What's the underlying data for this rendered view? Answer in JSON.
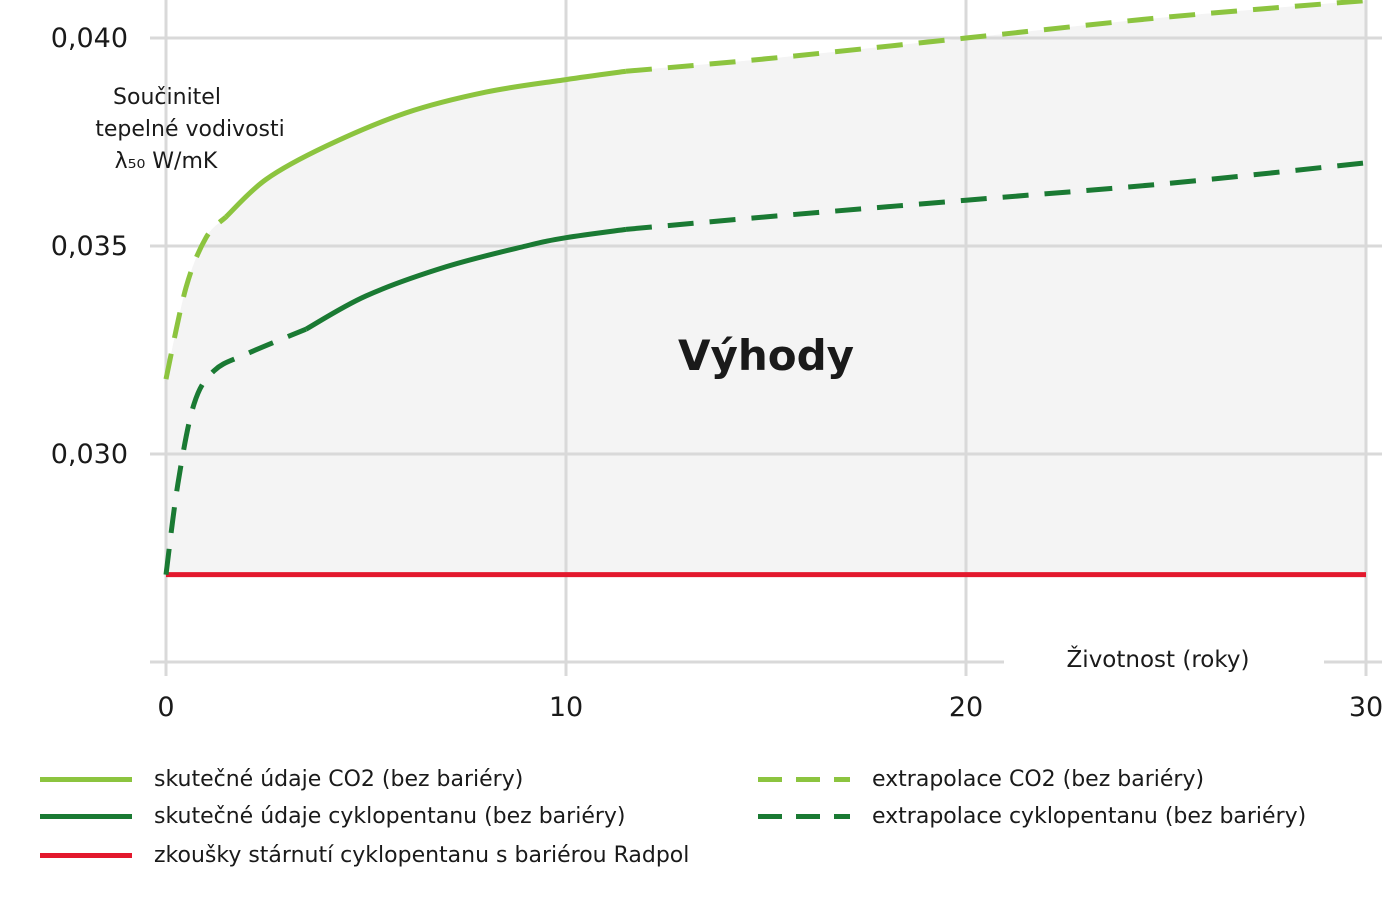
{
  "chart_data": {
    "type": "line",
    "xlabel": "Životnost (roky)",
    "ylabel_lines": [
      "Součinitel",
      "tepelné vodivosti",
      "λ₅₀ W/mK"
    ],
    "annotation": "Výhody",
    "xlim": [
      0,
      30
    ],
    "ylim": [
      0.0258,
      0.0408
    ],
    "x_ticks": [
      0,
      10,
      20,
      30
    ],
    "x_tick_labels": [
      "0",
      "10",
      "20",
      "30"
    ],
    "y_ticks": [
      0.03,
      0.035,
      0.04
    ],
    "y_tick_labels": [
      "0,030",
      "0,035",
      "0,040"
    ],
    "grid": true,
    "fill_between": {
      "upper": "co2",
      "lower": "radpol",
      "color": "#f4f4f4"
    },
    "series": [
      {
        "name": "skutečné údaje CO2 (bez bariéry)",
        "key": "co2_actual",
        "style": "solid",
        "color": "#8cc43f",
        "x": [
          1.5,
          2.5,
          4,
          6,
          8,
          10,
          11.5
        ],
        "y": [
          0.0357,
          0.0366,
          0.0374,
          0.0382,
          0.0387,
          0.039,
          0.0392
        ]
      },
      {
        "name": "extrapolace CO2 (bez bariéry)",
        "key": "co2_extrap",
        "style": "dashed",
        "color": "#8cc43f",
        "x": [
          0,
          0.5,
          1,
          1.5,
          11.5,
          15,
          20,
          25,
          30
        ],
        "y": [
          0.0318,
          0.034,
          0.0352,
          0.0357,
          0.0392,
          0.0395,
          0.04,
          0.0405,
          0.0409
        ]
      },
      {
        "name": "skutečné údaje cyklopentanu (bez bariéry)",
        "key": "cp_actual",
        "style": "solid",
        "color": "#1a7a33",
        "x": [
          3.5,
          5,
          7,
          9,
          10,
          11.5
        ],
        "y": [
          0.033,
          0.0338,
          0.0345,
          0.035,
          0.0352,
          0.0354
        ]
      },
      {
        "name": "extrapolace cyklopentanu (bez bariéry)",
        "key": "cp_extrap",
        "style": "dashed",
        "color": "#1a7a33",
        "x": [
          0,
          0.3,
          0.7,
          1.2,
          2,
          3.5,
          11.5,
          15,
          20,
          25,
          30
        ],
        "y": [
          0.0271,
          0.0293,
          0.0312,
          0.032,
          0.0324,
          0.033,
          0.0354,
          0.0357,
          0.0361,
          0.0365,
          0.037
        ]
      },
      {
        "name": "zkoušky stárnutí cyklopentanu s bariérou Radpol",
        "key": "radpol",
        "style": "solid",
        "color": "#e3182d",
        "x": [
          0,
          30
        ],
        "y": [
          0.0271,
          0.0271
        ]
      }
    ]
  },
  "legend": [
    {
      "label": "skutečné údaje CO2 (bez bariéry)",
      "color": "#8cc43f",
      "style": "solid"
    },
    {
      "label": "skutečné údaje cyklopentanu (bez bariéry)",
      "color": "#1a7a33",
      "style": "solid"
    },
    {
      "label": "zkoušky stárnutí cyklopentanu s bariérou Radpol",
      "color": "#e3182d",
      "style": "solid"
    },
    {
      "label": "extrapolace CO2 (bez bariéry)",
      "color": "#8cc43f",
      "style": "dashed"
    },
    {
      "label": "extrapolace cyklopentanu (bez bariéry)",
      "color": "#1a7a33",
      "style": "dashed"
    }
  ]
}
